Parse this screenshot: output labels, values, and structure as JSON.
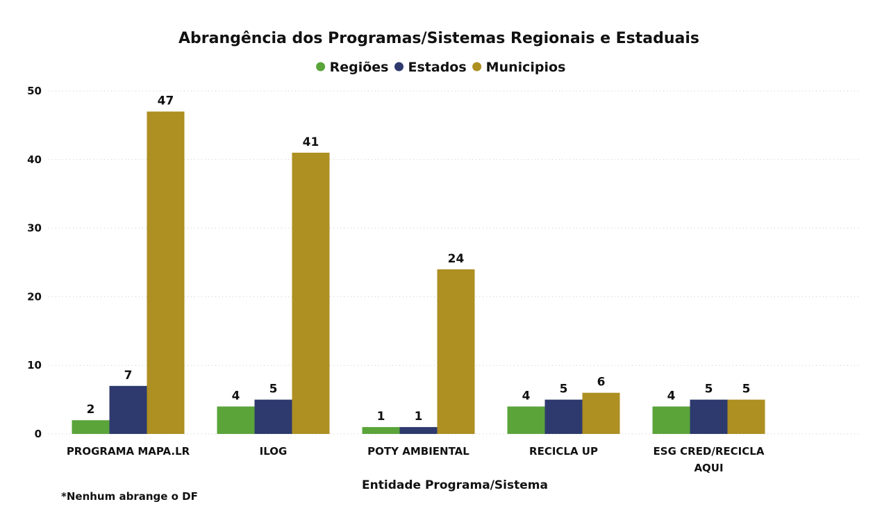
{
  "chart_data": {
    "type": "bar",
    "title": "Abrangência dos Programas/Sistemas Regionais e Estaduais",
    "xlabel": "Entidade Programa/Sistema",
    "ylabel": "",
    "ylim": [
      0,
      50
    ],
    "yticks": [
      0,
      10,
      20,
      30,
      40,
      50
    ],
    "grid": true,
    "legend_position": "top-center",
    "categories": [
      [
        "PROGRAMA MAPA.LR"
      ],
      [
        "ILOG"
      ],
      [
        "POTY AMBIENTAL"
      ],
      [
        "RECICLA UP"
      ],
      [
        "ESG CRED/RECICLA",
        "AQUI"
      ]
    ],
    "series": [
      {
        "name": "Regiões",
        "color": "#5aa43a",
        "values": [
          2,
          4,
          1,
          4,
          4
        ]
      },
      {
        "name": "Estados",
        "color": "#2e3a6e",
        "values": [
          7,
          5,
          1,
          5,
          5
        ]
      },
      {
        "name": "Municipios",
        "color": "#ad8f22",
        "values": [
          47,
          41,
          24,
          6,
          5
        ]
      }
    ],
    "note": "*Nenhum abrange o DF"
  }
}
